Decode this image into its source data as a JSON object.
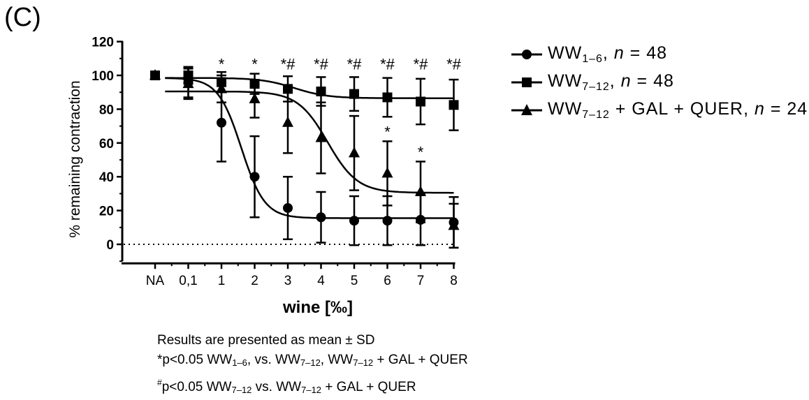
{
  "panel_label": "(C)",
  "chart_data": {
    "type": "scatter",
    "title": "",
    "xlabel": "wine [‰]",
    "ylabel": "% remaining contraction",
    "categories": [
      "NA",
      "0,1",
      "1",
      "2",
      "3",
      "4",
      "5",
      "6",
      "7",
      "8"
    ],
    "ylim": [
      -10,
      120
    ],
    "yticks": [
      0,
      20,
      40,
      60,
      80,
      100,
      120
    ],
    "grid": false,
    "legend_position": "right",
    "reference_line": 0,
    "series": [
      {
        "name": "WW1–6, n = 48",
        "marker": "circle",
        "values": [
          100,
          96,
          72,
          40,
          21.5,
          16,
          14,
          14,
          14.5,
          13
        ],
        "sd": [
          null,
          9,
          23,
          24,
          18.5,
          15,
          14.5,
          14.5,
          15,
          15
        ],
        "fit": {
          "top": 98.5,
          "bottom": 15.5,
          "center": 1.6,
          "width": 0.35
        }
      },
      {
        "name": "WW7–12, n = 48",
        "marker": "square",
        "values": [
          100,
          100,
          96,
          95,
          92,
          90.5,
          89,
          87,
          84.5,
          82.5
        ],
        "sd": [
          null,
          5,
          6,
          6,
          7.5,
          8.5,
          10,
          11.5,
          13.5,
          15
        ],
        "fit": {
          "top": 98.5,
          "bottom": 86.5,
          "center": 3.2,
          "width": 0.5
        }
      },
      {
        "name": "WW7–12 + GAL + QUER, n = 24",
        "marker": "triangle",
        "values": [
          100,
          95,
          92,
          86,
          72,
          63,
          54,
          42,
          31,
          11
        ],
        "sd": [
          null,
          9,
          8,
          11,
          18,
          21,
          22,
          19,
          18,
          13
        ],
        "fit": {
          "top": 90.5,
          "bottom": 30.5,
          "center": 4.2,
          "width": 0.45
        }
      }
    ],
    "annotations": [
      {
        "x": "1",
        "text": "*"
      },
      {
        "x": "2",
        "text": "*"
      },
      {
        "x": "3",
        "text": "*#"
      },
      {
        "x": "4",
        "text": "*#"
      },
      {
        "x": "5",
        "text": "*#"
      },
      {
        "x": "6",
        "text": "*#"
      },
      {
        "x": "7",
        "text": "*#"
      },
      {
        "x": "8",
        "text": "*#"
      },
      {
        "x": "6",
        "text": "*",
        "series": "WW7–12 + GAL + QUER"
      },
      {
        "x": "7",
        "text": "*",
        "series": "WW7–12 + GAL + QUER"
      }
    ]
  },
  "legend": [
    {
      "base": "WW",
      "sub": "1–6",
      "rest": ", ",
      "n": "n",
      "eq": " = 48"
    },
    {
      "base": "WW",
      "sub": "7–12",
      "rest": ", ",
      "n": "n",
      "eq": " = 48"
    },
    {
      "base": "WW",
      "sub": "7–12",
      "rest": " + GAL + QUER, ",
      "n": "n",
      "eq": " = 24"
    }
  ],
  "footnote": {
    "line1": "Results are presented as mean ± SD",
    "line2_pre": "*p<0.05 WW",
    "line2_sub1": "1–6",
    "line2_mid": ", vs. WW",
    "line2_sub2": "7–12",
    "line2_mid2": ", WW",
    "line2_sub3": "7–12",
    "line2_post": " + GAL + QUER",
    "line3_sup": "#",
    "line3_pre": "p<0.05 WW",
    "line3_sub1": "7–12",
    "line3_mid": " vs. WW",
    "line3_sub2": "7–12",
    "line3_post": " + GAL + QUER"
  }
}
